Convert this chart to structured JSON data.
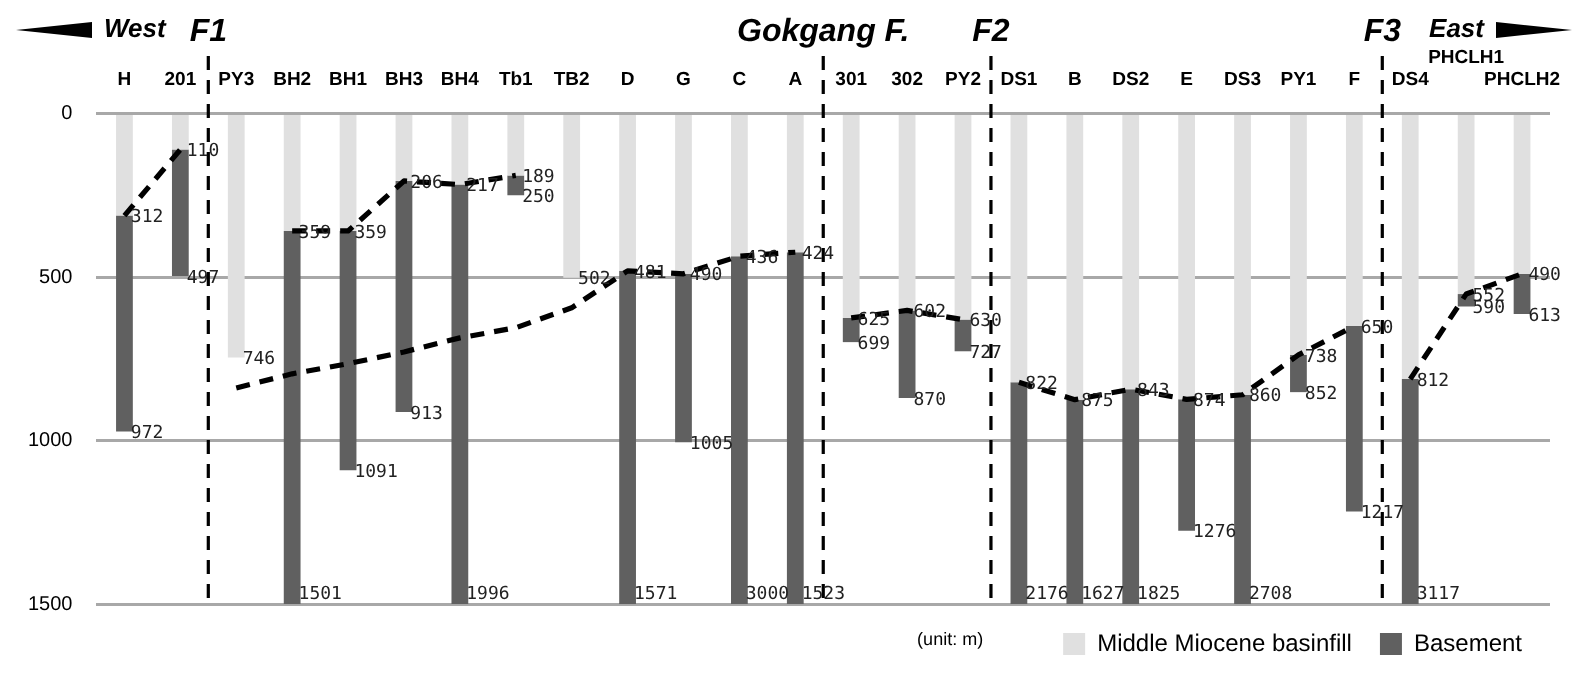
{
  "chart_data": {
    "type": "bar",
    "stacked": true,
    "categories": [
      "H",
      "201",
      "PY3",
      "BH2",
      "BH1",
      "BH3",
      "BH4",
      "Tb1",
      "TB2",
      "D",
      "G",
      "C",
      "A",
      "301",
      "302",
      "PY2",
      "DS1",
      "B",
      "DS2",
      "E",
      "DS3",
      "PY1",
      "F",
      "DS4",
      "PHCLH1",
      "PHCLH2"
    ],
    "ylim": [
      1500,
      0
    ],
    "yticks": [
      0,
      500,
      1000,
      1500
    ],
    "grid": "y",
    "legend": "bottom right",
    "series": [
      {
        "name": "Middle Miocene basinfill",
        "color": "#e0e0e0",
        "values": [
          312,
          110,
          746,
          359,
          359,
          206,
          217,
          189,
          502,
          481,
          490,
          436,
          424,
          625,
          602,
          630,
          822,
          875,
          843,
          874,
          860,
          738,
          650,
          812,
          552,
          490
        ],
        "value_labels": [
          "312",
          "110",
          "746",
          "359",
          "359",
          "206",
          "217",
          "189",
          "502",
          "481",
          "490",
          "436",
          "424",
          "625",
          "602",
          "630",
          "822",
          "875",
          "843",
          "874",
          "860",
          "738",
          "650",
          "812",
          "552",
          "490"
        ]
      },
      {
        "name": "Basement",
        "color": "#606060",
        "values": [
          660,
          387,
          null,
          1141,
          732,
          707,
          1283,
          61,
          null,
          1019,
          515,
          1064,
          1076,
          74,
          268,
          97,
          678,
          625,
          657,
          402,
          640,
          114,
          567,
          688,
          38,
          123
        ]
      },
      {
        "type": "line",
        "color": "#000000",
        "line_style": "dashed",
        "marker": "none",
        "values": [
          312,
          110,
          null,
          null,
          null,
          null,
          null,
          null,
          null,
          null,
          null,
          null,
          null,
          null,
          null,
          null,
          null,
          null,
          null,
          null,
          null,
          null,
          null,
          null,
          null,
          null
        ]
      },
      {
        "type": "line",
        "color": "#000000",
        "line_style": "dashed",
        "marker": "none",
        "values": [
          null,
          null,
          839,
          796,
          765,
          729,
          686,
          655,
          594,
          481,
          490,
          436,
          424,
          null,
          null,
          null,
          null,
          null,
          null,
          null,
          null,
          null,
          null,
          null,
          null,
          null
        ]
      },
      {
        "type": "line",
        "color": "#000000",
        "line_style": "dashed",
        "marker": "none",
        "values": [
          null,
          null,
          null,
          359,
          359,
          206,
          217,
          189,
          null,
          null,
          null,
          null,
          null,
          null,
          null,
          null,
          null,
          null,
          null,
          null,
          null,
          null,
          null,
          null,
          null,
          null
        ]
      },
      {
        "type": "line",
        "color": "#000000",
        "line_style": "dashed",
        "marker": "none",
        "values": [
          null,
          null,
          null,
          null,
          null,
          null,
          null,
          null,
          null,
          null,
          null,
          null,
          null,
          625,
          602,
          630,
          null,
          null,
          null,
          null,
          null,
          null,
          null,
          null,
          null,
          null
        ]
      },
      {
        "type": "line",
        "color": "#000000",
        "line_style": "dashed",
        "marker": "none",
        "values": [
          null,
          null,
          null,
          null,
          null,
          null,
          null,
          null,
          null,
          null,
          null,
          null,
          null,
          null,
          null,
          null,
          822,
          875,
          843,
          874,
          860,
          738,
          650,
          null,
          null,
          null
        ]
      },
      {
        "type": "line",
        "color": "#000000",
        "line_style": "dashed",
        "marker": "none",
        "values": [
          null,
          null,
          null,
          null,
          null,
          null,
          null,
          null,
          null,
          null,
          null,
          null,
          null,
          null,
          null,
          null,
          null,
          null,
          null,
          null,
          null,
          null,
          null,
          812,
          552,
          490
        ]
      }
    ],
    "annotations": [
      "West",
      "East",
      "(unit: m)",
      "F1",
      "Gokgang F.",
      "F2",
      "F3",
      {
        "text": "972",
        "x": "H",
        "y": 972
      },
      {
        "text": "497",
        "x": "201",
        "y": 497
      },
      {
        "text": "1501",
        "x": "BH2",
        "y": 1500
      },
      {
        "text": "1091",
        "x": "BH1",
        "y": 1091
      },
      {
        "text": "913",
        "x": "BH3",
        "y": 913
      },
      {
        "text": "1996",
        "x": "BH4",
        "y": 1500
      },
      {
        "text": "250",
        "x": "Tb1",
        "y": 250
      },
      {
        "text": "1571",
        "x": "D",
        "y": 1500
      },
      {
        "text": "1005",
        "x": "G",
        "y": 1005
      },
      {
        "text": "3000",
        "x": "C",
        "y": 1500
      },
      {
        "text": "1523",
        "x": "A",
        "y": 1500
      },
      {
        "text": "699",
        "x": "301",
        "y": 699
      },
      {
        "text": "870",
        "x": "302",
        "y": 870
      },
      {
        "text": "727",
        "x": "PY2",
        "y": 727
      },
      {
        "text": "2176",
        "x": "DS1",
        "y": 1500
      },
      {
        "text": "1627",
        "x": "B",
        "y": 1500
      },
      {
        "text": "1825",
        "x": "DS2",
        "y": 1500
      },
      {
        "text": "1276",
        "x": "E",
        "y": 1276
      },
      {
        "text": "2708",
        "x": "DS3",
        "y": 1500
      },
      {
        "text": "852",
        "x": "PY1",
        "y": 852
      },
      {
        "text": "1217",
        "x": "F",
        "y": 1217
      },
      {
        "text": "3117",
        "x": "DS4",
        "y": 1500
      },
      {
        "text": "590",
        "x": "PHCLH1",
        "y": 590
      },
      {
        "text": "613",
        "x": "PHCLH2",
        "y": 613
      }
    ]
  }
}
